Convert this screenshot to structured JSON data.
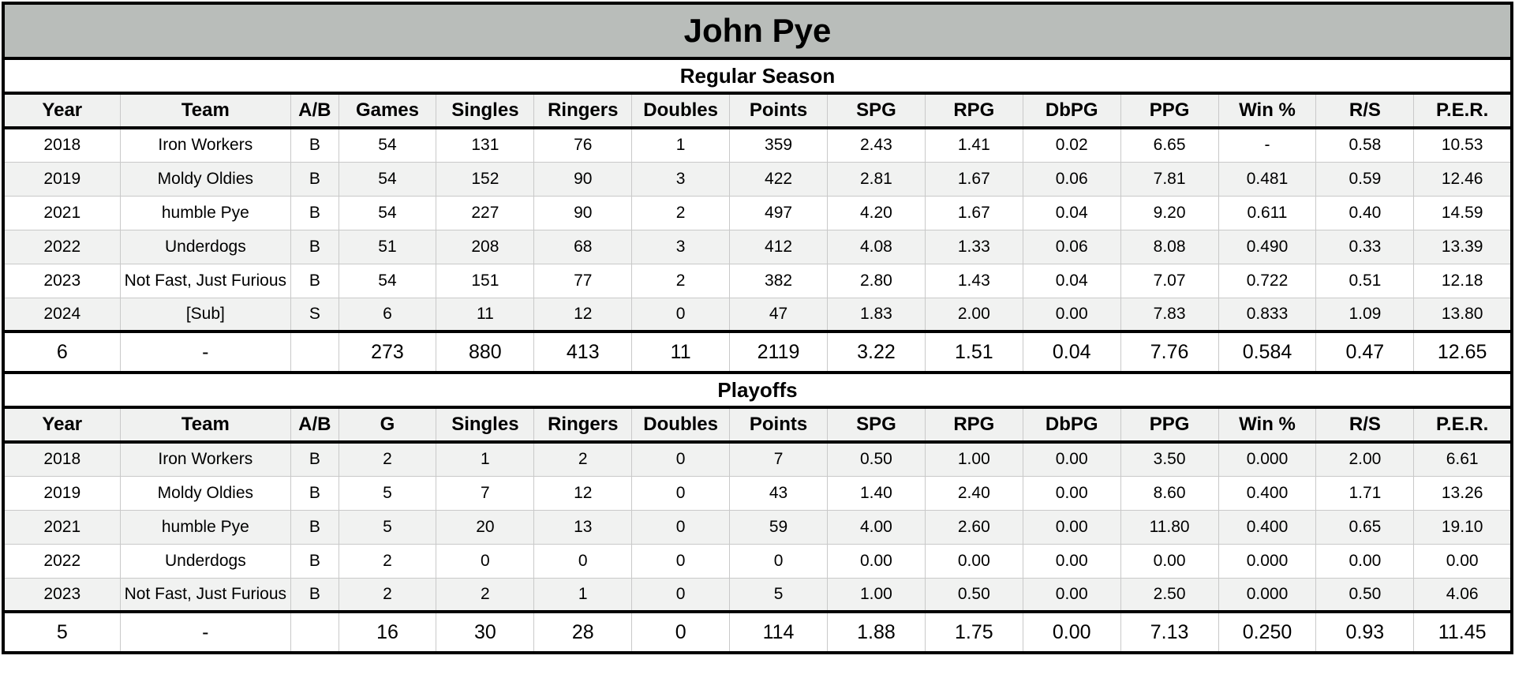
{
  "colors": {
    "title_bar_bg": "#b9bdba",
    "stripe_bg": "#f1f2f1",
    "header_row_bg": "#f0f1f0",
    "border_black": "#000000",
    "grid_line": "#c9c9c9",
    "text_color": "#000000"
  },
  "chart_data": {
    "type": "table",
    "title": "John Pye",
    "sections": [
      {
        "title": "Regular Season",
        "columns": [
          "Year",
          "Team",
          "A/B",
          "Games",
          "Singles",
          "Ringers",
          "Doubles",
          "Points",
          "SPG",
          "RPG",
          "DbPG",
          "PPG",
          "Win %",
          "R/S",
          "P.E.R."
        ],
        "rows": [
          [
            "2018",
            "Iron Workers",
            "B",
            "54",
            "131",
            "76",
            "1",
            "359",
            "2.43",
            "1.41",
            "0.02",
            "6.65",
            "-",
            "0.58",
            "10.53"
          ],
          [
            "2019",
            "Moldy Oldies",
            "B",
            "54",
            "152",
            "90",
            "3",
            "422",
            "2.81",
            "1.67",
            "0.06",
            "7.81",
            "0.481",
            "0.59",
            "12.46"
          ],
          [
            "2021",
            "humble Pye",
            "B",
            "54",
            "227",
            "90",
            "2",
            "497",
            "4.20",
            "1.67",
            "0.04",
            "9.20",
            "0.611",
            "0.40",
            "14.59"
          ],
          [
            "2022",
            "Underdogs",
            "B",
            "51",
            "208",
            "68",
            "3",
            "412",
            "4.08",
            "1.33",
            "0.06",
            "8.08",
            "0.490",
            "0.33",
            "13.39"
          ],
          [
            "2023",
            "Not Fast, Just Furious",
            "B",
            "54",
            "151",
            "77",
            "2",
            "382",
            "2.80",
            "1.43",
            "0.04",
            "7.07",
            "0.722",
            "0.51",
            "12.18"
          ],
          [
            "2024",
            "[Sub]",
            "S",
            "6",
            "11",
            "12",
            "0",
            "47",
            "1.83",
            "2.00",
            "0.00",
            "7.83",
            "0.833",
            "1.09",
            "13.80"
          ]
        ],
        "totals": [
          "6",
          "-",
          "",
          "273",
          "880",
          "413",
          "11",
          "2119",
          "3.22",
          "1.51",
          "0.04",
          "7.76",
          "0.584",
          "0.47",
          "12.65"
        ]
      },
      {
        "title": "Playoffs",
        "columns": [
          "Year",
          "Team",
          "A/B",
          "G",
          "Singles",
          "Ringers",
          "Doubles",
          "Points",
          "SPG",
          "RPG",
          "DbPG",
          "PPG",
          "Win %",
          "R/S",
          "P.E.R."
        ],
        "rows": [
          [
            "2018",
            "Iron Workers",
            "B",
            "2",
            "1",
            "2",
            "0",
            "7",
            "0.50",
            "1.00",
            "0.00",
            "3.50",
            "0.000",
            "2.00",
            "6.61"
          ],
          [
            "2019",
            "Moldy Oldies",
            "B",
            "5",
            "7",
            "12",
            "0",
            "43",
            "1.40",
            "2.40",
            "0.00",
            "8.60",
            "0.400",
            "1.71",
            "13.26"
          ],
          [
            "2021",
            "humble Pye",
            "B",
            "5",
            "20",
            "13",
            "0",
            "59",
            "4.00",
            "2.60",
            "0.00",
            "11.80",
            "0.400",
            "0.65",
            "19.10"
          ],
          [
            "2022",
            "Underdogs",
            "B",
            "2",
            "0",
            "0",
            "0",
            "0",
            "0.00",
            "0.00",
            "0.00",
            "0.00",
            "0.000",
            "0.00",
            "0.00"
          ],
          [
            "2023",
            "Not Fast, Just Furious",
            "B",
            "2",
            "2",
            "1",
            "0",
            "5",
            "1.00",
            "0.50",
            "0.00",
            "2.50",
            "0.000",
            "0.50",
            "4.06"
          ]
        ],
        "totals": [
          "5",
          "-",
          "",
          "16",
          "30",
          "28",
          "0",
          "114",
          "1.88",
          "1.75",
          "0.00",
          "7.13",
          "0.250",
          "0.93",
          "11.45"
        ]
      }
    ]
  }
}
